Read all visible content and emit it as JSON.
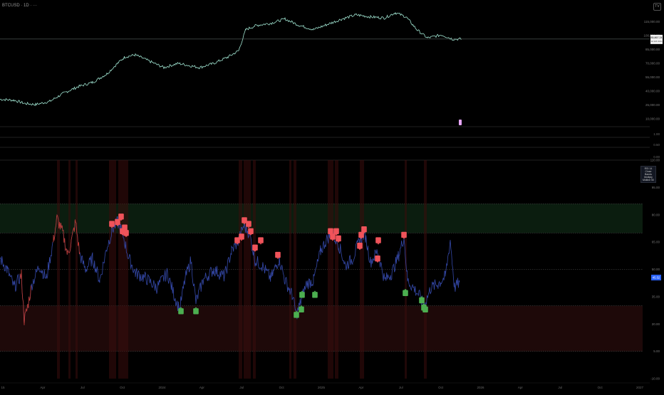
{
  "header": {
    "symbol_line": "BTCUSD · 1D · ···"
  },
  "colors": {
    "price_line": "#9fe3d0",
    "osc_line": "#3448a8",
    "osc_hot": "#c0392b",
    "sell": "#f0535a",
    "buy": "#4caf50",
    "zone_high": "#0b1d0f",
    "zone_low": "#1e0909",
    "value_badge": "#2962ff"
  },
  "chart_data": [
    {
      "type": "line",
      "name": "price-pane",
      "ylim": [
        0,
        120000
      ],
      "x": [
        0,
        20,
        35,
        50,
        70,
        90,
        110,
        130,
        150,
        165,
        175,
        190,
        210,
        230,
        250,
        265,
        280,
        300,
        320,
        335,
        345,
        360,
        380,
        400,
        420,
        440,
        460,
        480,
        500,
        520,
        540,
        555,
        570,
        585,
        600,
        620,
        635,
        648
      ],
      "values": [
        26000,
        25000,
        22000,
        21000,
        24000,
        32000,
        38000,
        42000,
        50000,
        60000,
        66000,
        68000,
        62000,
        56000,
        60000,
        58000,
        56000,
        60000,
        66000,
        72000,
        92000,
        96000,
        98000,
        102000,
        96000,
        92000,
        97000,
        102000,
        106000,
        104000,
        103000,
        108000,
        104000,
        92000,
        84000,
        87000,
        83000,
        83000
      ],
      "y_ticks": [
        "115,000.00",
        "100,000.00",
        "85,000.00",
        "70,000.00",
        "55,000.00",
        "40,000.00",
        "25,000.00",
        "10,000.00"
      ],
      "last_price": "85,867.24",
      "last_sub": "1d 12h 34m"
    },
    {
      "type": "line",
      "name": "oscillator-pane",
      "ylim": [
        -10,
        110
      ],
      "x_ticks": [
        "15",
        "Apr",
        "Jul",
        "Oct",
        "2024",
        "Apr",
        "Jul",
        "Oct",
        "2025",
        "Apr",
        "Jul",
        "Oct",
        "2026",
        "Apr",
        "Jul",
        "Oct",
        "2027"
      ],
      "y_ticks": [
        "110.00",
        "95.00",
        "80.00",
        "65.00",
        "50.00",
        "35.00",
        "20.00",
        "5.00",
        "-10.00"
      ],
      "levels": {
        "overbought": 70,
        "middle": 50,
        "oversold": 30,
        "top": 86,
        "bottom": 5
      },
      "last_value": "45.52",
      "legend_lines": [
        "RSI 14 Close",
        "Bands Multiply",
        "Midline 50"
      ],
      "sell_labels": [
        {
          "x": 157,
          "y": 75
        },
        {
          "x": 165,
          "y": 76
        },
        {
          "x": 170,
          "y": 79
        },
        {
          "x": 172,
          "y": 71
        },
        {
          "x": 175,
          "y": 73
        },
        {
          "x": 177,
          "y": 70
        },
        {
          "x": 333,
          "y": 66
        },
        {
          "x": 339,
          "y": 68
        },
        {
          "x": 343,
          "y": 77
        },
        {
          "x": 349,
          "y": 75
        },
        {
          "x": 352,
          "y": 71
        },
        {
          "x": 358,
          "y": 62
        },
        {
          "x": 366,
          "y": 66
        },
        {
          "x": 390,
          "y": 58
        },
        {
          "x": 464,
          "y": 71
        },
        {
          "x": 467,
          "y": 68
        },
        {
          "x": 472,
          "y": 71
        },
        {
          "x": 475,
          "y": 67
        },
        {
          "x": 505,
          "y": 63
        },
        {
          "x": 507,
          "y": 69
        },
        {
          "x": 511,
          "y": 72
        },
        {
          "x": 530,
          "y": 56
        },
        {
          "x": 531,
          "y": 66
        },
        {
          "x": 567,
          "y": 69
        }
      ],
      "buy_labels": [
        {
          "x": 254,
          "y": 27
        },
        {
          "x": 275,
          "y": 27
        },
        {
          "x": 416,
          "y": 25
        },
        {
          "x": 423,
          "y": 28
        },
        {
          "x": 424,
          "y": 36
        },
        {
          "x": 442,
          "y": 36
        },
        {
          "x": 569,
          "y": 37
        },
        {
          "x": 592,
          "y": 33
        },
        {
          "x": 595,
          "y": 29
        },
        {
          "x": 597,
          "y": 28
        }
      ]
    }
  ]
}
